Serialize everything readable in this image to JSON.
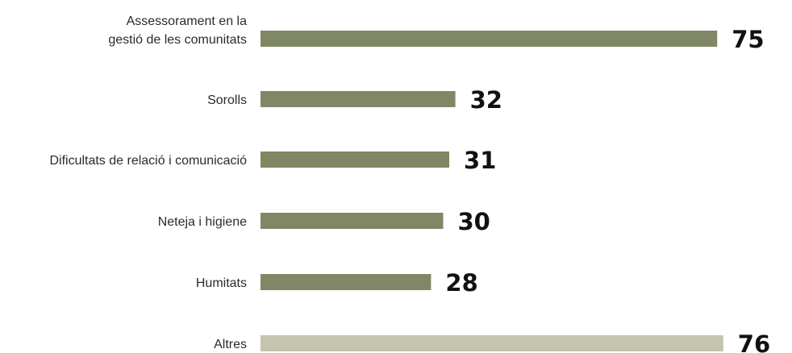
{
  "chart_data": {
    "type": "bar",
    "orientation": "horizontal",
    "categories": [
      "Assessorament en la gestió de les comunitats",
      "Sorolls",
      "Dificultats de relació i comunicació",
      "Neteja i higiene",
      "Humitats",
      "Altres"
    ],
    "category_lines": [
      [
        "Assessorament en la",
        "gestió de les comunitats"
      ],
      [
        "Sorolls"
      ],
      [
        "Dificultats de relació i comunicació"
      ],
      [
        "Neteja i higiene"
      ],
      [
        "Humitats"
      ],
      [
        "Altres"
      ]
    ],
    "values": [
      75,
      32,
      31,
      30,
      28,
      76
    ],
    "value_labels": [
      "75",
      "32",
      "31",
      "30",
      "28",
      "76"
    ],
    "bar_colors": [
      "#7f8764",
      "#7f8764",
      "#7f8764",
      "#7f8764",
      "#7f8764",
      "#c5c4ae"
    ],
    "title": "",
    "xlabel": "",
    "ylabel": "",
    "xlim": [
      0,
      76
    ],
    "grid": false,
    "legend": "none"
  }
}
